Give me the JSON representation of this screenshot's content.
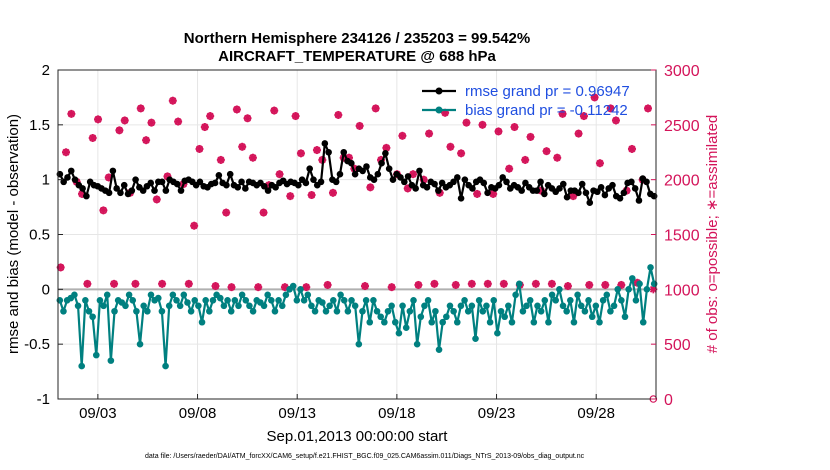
{
  "chart_data": {
    "type": "line",
    "title_line1": "Northern Hemisphere 234126 / 235203 = 99.542%",
    "title_line2": "AIRCRAFT_TEMPERATURE @ 688 hPa",
    "xlabel": "Sep.01,2013 00:00:00 start",
    "ylabel_left": "rmse and bias (model - observation)",
    "ylabel_right": "# of obs: o=possible; ∗=assimilated",
    "footer": "data file: /Users/raeder/DAI/ATM_forcXX/CAM6_setup/f.e21.FHIST_BGC.f09_025.CAM6assim.011/Diags_NTrS_2013-09/obs_diag_output.nc",
    "x_ticks": [
      "09/03",
      "09/08",
      "09/13",
      "09/18",
      "09/23",
      "09/28"
    ],
    "x_tick_days": [
      3,
      8,
      13,
      18,
      23,
      28
    ],
    "y_left_ticks": [
      "2",
      "1.5",
      "1",
      "0.5",
      "0",
      "-0.5",
      "-1"
    ],
    "y_left_tick_values": [
      2,
      1.5,
      1,
      0.5,
      0,
      -0.5,
      -1
    ],
    "y_right_ticks": [
      "3000",
      "2500",
      "2000",
      "1500",
      "1000",
      "500",
      "0"
    ],
    "y_right_tick_values": [
      3000,
      2500,
      2000,
      1500,
      1000,
      500,
      0
    ],
    "xlim": [
      1.0,
      31.0
    ],
    "ylim_left": [
      -1,
      2
    ],
    "ylim_right": [
      0,
      3000
    ],
    "legend": [
      "rmse grand pr = 0.96947",
      "bias grand pr = -0.11242"
    ],
    "legend_position": "top-right",
    "series": [
      {
        "name": "rmse",
        "color": "#000000",
        "values": [
          1.05,
          0.98,
          1.02,
          1.08,
          1.0,
          0.95,
          0.92,
          0.85,
          0.98,
          0.95,
          0.94,
          0.92,
          0.9,
          0.88,
          1.08,
          0.92,
          0.88,
          0.95,
          0.87,
          0.9,
          1.0,
          0.93,
          0.9,
          0.94,
          0.97,
          0.9,
          0.98,
          0.98,
          0.9,
          1.0,
          0.98,
          0.96,
          0.9,
          0.99,
          1.0,
          0.98,
          0.95,
          0.98,
          0.94,
          0.93,
          0.96,
          0.97,
          1.04,
          0.97,
          0.95,
          1.05,
          0.95,
          0.93,
          0.98,
          0.92,
          0.98,
          0.97,
          0.95,
          0.97,
          0.94,
          0.9,
          0.95,
          0.93,
          0.97,
          0.99,
          0.96,
          0.98,
          0.97,
          0.95,
          1.0,
          0.97,
          1.1,
          1.0,
          0.95,
          0.98,
          1.33,
          1.25,
          1.0,
          0.98,
          1.05,
          1.25,
          1.17,
          1.15,
          1.05,
          1.1,
          1.08,
          1.12,
          1.02,
          1.0,
          1.05,
          1.15,
          1.24,
          1.1,
          1.0,
          1.05,
          1.02,
          0.98,
          1.03,
          0.95,
          0.92,
          1.08,
          0.95,
          0.93,
          0.98,
          0.96,
          0.9,
          0.97,
          0.93,
          0.95,
          0.98,
          1.02,
          0.83,
          1.0,
          0.95,
          0.92,
          0.98,
          1.0,
          0.97,
          0.88,
          0.93,
          0.92,
          0.95,
          1.02,
          0.98,
          0.92,
          0.95,
          0.93,
          0.9,
          0.97,
          0.93,
          0.9,
          0.9,
          0.98,
          0.87,
          0.95,
          0.92,
          0.89,
          0.92,
          0.96,
          0.84,
          0.9,
          0.9,
          0.88,
          0.96,
          0.88,
          0.79,
          0.9,
          0.89,
          0.93,
          0.86,
          0.92,
          0.95,
          0.85,
          0.83,
          0.88,
          0.97,
          0.98,
          0.92,
          0.81,
          1.01,
          0.98,
          0.87,
          0.85
        ]
      },
      {
        "name": "bias",
        "color": "#008080",
        "values": [
          -0.1,
          -0.2,
          -0.1,
          -0.08,
          -0.05,
          -0.15,
          -0.7,
          -0.1,
          -0.2,
          -0.25,
          -0.6,
          -0.1,
          -0.15,
          -0.05,
          -0.65,
          -0.2,
          -0.1,
          -0.12,
          -0.15,
          -0.05,
          -0.1,
          -0.2,
          -0.5,
          -0.15,
          -0.2,
          -0.05,
          -0.1,
          -0.08,
          -0.2,
          -0.7,
          -0.15,
          -0.05,
          -0.1,
          -0.15,
          -0.05,
          -0.12,
          -0.2,
          -0.1,
          -0.15,
          -0.3,
          -0.1,
          -0.2,
          -0.1,
          -0.05,
          -0.08,
          -0.15,
          -0.1,
          -0.2,
          -0.1,
          -0.15,
          -0.05,
          -0.1,
          -0.15,
          -0.2,
          -0.1,
          -0.12,
          -0.15,
          -0.05,
          -0.1,
          -0.2,
          -0.1,
          -0.15,
          -0.05,
          0.0,
          0.03,
          -0.1,
          0.0,
          -0.1,
          -0.05,
          -0.15,
          -0.2,
          -0.1,
          -0.12,
          -0.2,
          -0.15,
          -0.1,
          -0.2,
          -0.05,
          -0.1,
          -0.2,
          -0.1,
          -0.15,
          -0.5,
          -0.2,
          -0.1,
          -0.3,
          -0.1,
          -0.2,
          -0.25,
          -0.3,
          -0.2,
          -0.15,
          -0.3,
          -0.4,
          -0.15,
          -0.35,
          -0.2,
          -0.1,
          -0.5,
          -0.25,
          -0.15,
          -0.1,
          -0.3,
          -0.2,
          -0.55,
          -0.3,
          -0.25,
          -0.15,
          -0.2,
          -0.3,
          -0.15,
          -0.1,
          -0.2,
          -0.15,
          -0.45,
          -0.1,
          -0.2,
          -0.15,
          -0.3,
          -0.1,
          -0.4,
          -0.2,
          -0.25,
          -0.15,
          -0.3,
          -0.05,
          0.05,
          -0.2,
          -0.15,
          -0.1,
          -0.3,
          -0.15,
          -0.2,
          -0.1,
          -0.3,
          -0.05,
          -0.1,
          0.0,
          -0.15,
          -0.2,
          -0.1,
          -0.3,
          -0.05,
          -0.15,
          -0.2,
          -0.1,
          -0.25,
          -0.15,
          -0.3,
          -0.1,
          -0.05,
          -0.2,
          -0.15,
          0.0,
          -0.1,
          -0.25,
          0.0,
          0.1,
          -0.1,
          0.05,
          -0.3,
          0.0,
          0.2,
          0.05
        ]
      }
    ],
    "obs_assimilated": {
      "name": "assimilated",
      "color": "#d4145a",
      "values": [
        1200,
        2250,
        2600,
        1980,
        1870,
        1050,
        2380,
        2550,
        1720,
        2020,
        1050,
        2450,
        2540,
        1880,
        1050,
        2650,
        2360,
        2520,
        1820,
        1050,
        2030,
        2720,
        2530,
        1960,
        1050,
        1580,
        2280,
        2480,
        2580,
        1030,
        2180,
        1700,
        1020,
        2640,
        2300,
        2560,
        2200,
        1020,
        1700,
        1950,
        2630,
        2050,
        1020,
        1850,
        2580,
        2240,
        1020,
        1860,
        2270,
        2180,
        1040,
        1880,
        2590,
        2200,
        2200,
        2100,
        2490,
        1030,
        1930,
        2650,
        2180,
        2290,
        1020,
        2050,
        2400,
        1920,
        2050,
        1040,
        2000,
        2420,
        1050,
        1880,
        2610,
        2300,
        1040,
        2240,
        2520,
        1050,
        1870,
        2500,
        1050,
        1870,
        2440,
        1050,
        2100,
        2480,
        1040,
        2180,
        2390,
        1050,
        1900,
        2260,
        1050,
        2200,
        2600,
        1030,
        1850,
        2420,
        2580,
        1040,
        2750,
        2150,
        1040,
        2650,
        2540,
        1040,
        1900,
        2280,
        1060,
        2000,
        2650,
        1000
      ]
    },
    "obs_possible": {
      "name": "possible",
      "color": "#d4145a",
      "values": [
        1200,
        2250,
        2600,
        1980,
        1870,
        1050,
        2380,
        2550,
        1720,
        2020,
        1050,
        2450,
        2540,
        1880,
        1050,
        2650,
        2360,
        2520,
        1820,
        1050,
        2030,
        2720,
        2530,
        1960,
        1050,
        1580,
        2280,
        2480,
        2580,
        1030,
        2180,
        1700,
        1020,
        2640,
        2300,
        2560,
        2200,
        1020,
        1700,
        1950,
        2630,
        2050,
        1020,
        1850,
        2580,
        2240,
        1020,
        1860,
        2270,
        2180,
        1040,
        1880,
        2590,
        2200,
        2200,
        2100,
        2490,
        1030,
        1930,
        2650,
        2180,
        2290,
        1020,
        2050,
        2400,
        1920,
        2050,
        1040,
        2000,
        2420,
        1050,
        1880,
        2610,
        2300,
        1040,
        2240,
        2520,
        1050,
        1870,
        2500,
        1050,
        1870,
        2440,
        1050,
        2100,
        2480,
        1040,
        2180,
        2390,
        1050,
        1900,
        2260,
        1050,
        2200,
        2600,
        1030,
        1850,
        2420,
        2580,
        1040,
        2750,
        2150,
        1040,
        2650,
        2540,
        1040,
        1900,
        2280,
        1060,
        2000,
        2650,
        0
      ]
    }
  }
}
